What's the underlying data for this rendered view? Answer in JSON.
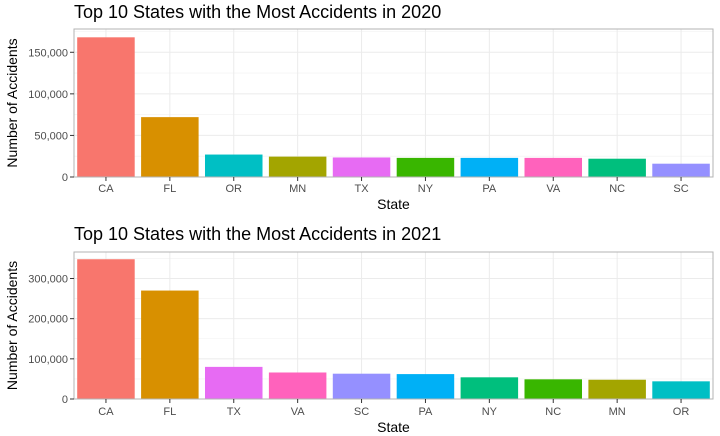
{
  "chart_data": [
    {
      "type": "bar",
      "title": "Top 10 States with the Most Accidents in 2020",
      "xlabel": "State",
      "ylabel": "Number of Accidents",
      "categories": [
        "CA",
        "FL",
        "OR",
        "MN",
        "TX",
        "NY",
        "PA",
        "VA",
        "NC",
        "SC"
      ],
      "values": [
        168000,
        72000,
        27000,
        24500,
        23500,
        23000,
        23000,
        23000,
        22000,
        16000
      ],
      "colors": [
        "#F8766D",
        "#D89000",
        "#00BFC4",
        "#A3A500",
        "#E76BF3",
        "#39B600",
        "#00B0F6",
        "#FF62BC",
        "#00BF7D",
        "#9590FF"
      ],
      "ylim": [
        0,
        178000
      ],
      "yticks": [
        0,
        50000,
        100000,
        150000
      ],
      "ytick_labels": [
        "0",
        "50,000",
        "100,000",
        "150,000"
      ],
      "grid": true,
      "legend": "none"
    },
    {
      "type": "bar",
      "title": "Top 10 States with the Most Accidents in 2021",
      "xlabel": "State",
      "ylabel": "Number of Accidents",
      "categories": [
        "CA",
        "FL",
        "TX",
        "VA",
        "SC",
        "PA",
        "NY",
        "NC",
        "MN",
        "OR"
      ],
      "values": [
        348000,
        270000,
        80000,
        66000,
        63000,
        62000,
        54000,
        49000,
        48000,
        44000
      ],
      "colors": [
        "#F8766D",
        "#D89000",
        "#E76BF3",
        "#FF62BC",
        "#9590FF",
        "#00B0F6",
        "#00BF7D",
        "#39B600",
        "#A3A500",
        "#00BFC4"
      ],
      "ylim": [
        0,
        366000
      ],
      "yticks": [
        0,
        100000,
        200000,
        300000
      ],
      "ytick_labels": [
        "0",
        "100,000",
        "200,000",
        "300,000"
      ],
      "grid": true,
      "legend": "none"
    }
  ]
}
